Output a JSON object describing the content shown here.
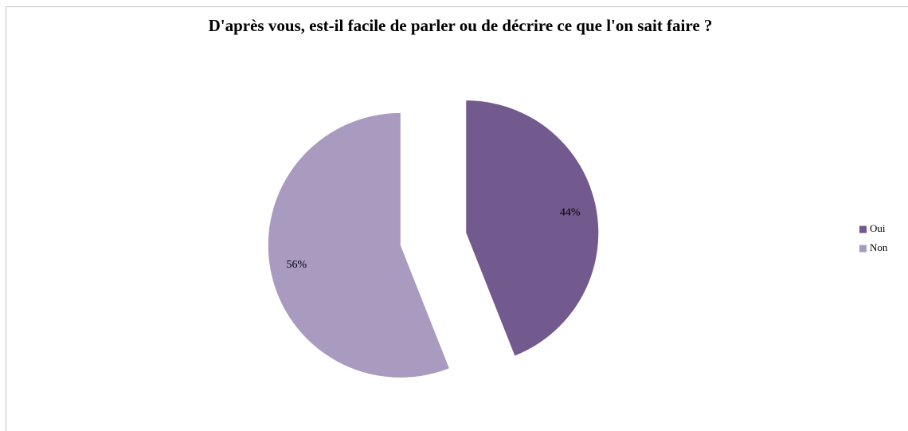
{
  "chart_data": {
    "type": "pie",
    "title": "D'après vous, est-il facile de parler ou de décrire ce que l'on sait faire ?",
    "categories": [
      "Oui",
      "Non"
    ],
    "values": [
      44,
      56
    ],
    "value_labels": [
      "44%",
      "56%"
    ],
    "colors": [
      "#72598e",
      "#a99bbf"
    ],
    "legend": "right"
  }
}
